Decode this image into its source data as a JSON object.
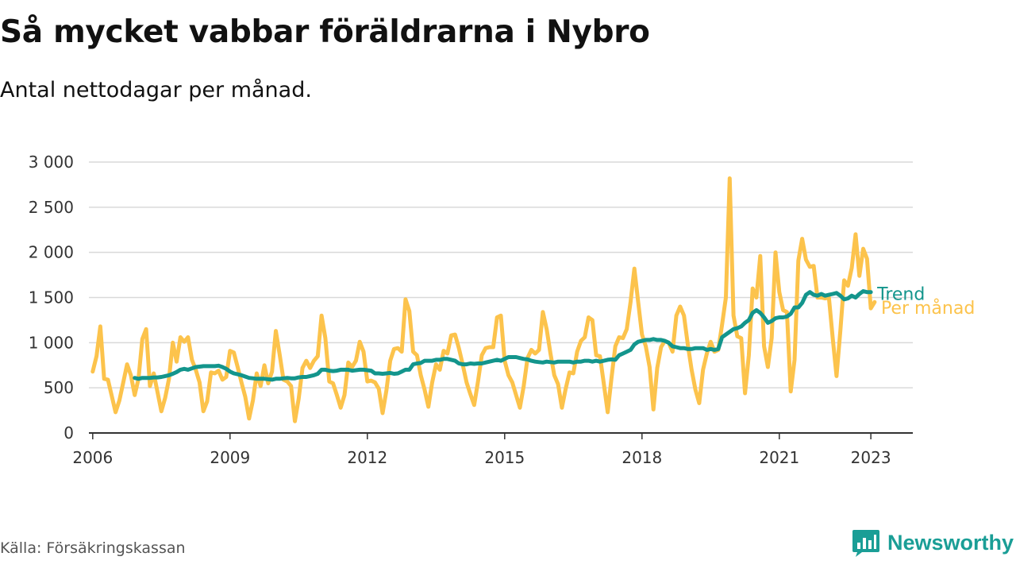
{
  "header": {
    "title": "Så mycket vabbar föräldrarna i Nybro",
    "subtitle": "Antal nettodagar per månad."
  },
  "footer": {
    "source": "Källa: Försäkringskassan",
    "brand": "Newsworthy",
    "brand_icon": "bar-chart-speech-bubble-icon"
  },
  "colors": {
    "monthly": "#fcc34c",
    "trend": "#13958c",
    "grid": "#d9d9d9",
    "axis": "#333333"
  },
  "chart_data": {
    "type": "line",
    "xlim": [
      "2005-12",
      "2023-12"
    ],
    "ylim": [
      0,
      3000
    ],
    "grid": true,
    "y_ticks": [
      {
        "value": 0,
        "label": "0"
      },
      {
        "value": 500,
        "label": "500"
      },
      {
        "value": 1000,
        "label": "1 000"
      },
      {
        "value": 1500,
        "label": "1 500"
      },
      {
        "value": 2000,
        "label": "2 000"
      },
      {
        "value": 2500,
        "label": "2 500"
      },
      {
        "value": 3000,
        "label": "3 000"
      }
    ],
    "x_ticks": [
      {
        "value": "2006-01",
        "label": "2006"
      },
      {
        "value": "2009-01",
        "label": "2009"
      },
      {
        "value": "2012-01",
        "label": "2012"
      },
      {
        "value": "2015-01",
        "label": "2015"
      },
      {
        "value": "2018-01",
        "label": "2018"
      },
      {
        "value": "2021-01",
        "label": "2021"
      },
      {
        "value": "2023-01",
        "label": "2023"
      }
    ],
    "series": [
      {
        "name": "Per månad",
        "start": "2006-01",
        "values": [
          680,
          850,
          1180,
          600,
          590,
          410,
          230,
          360,
          560,
          760,
          640,
          420,
          600,
          1040,
          1150,
          520,
          660,
          450,
          240,
          390,
          600,
          1000,
          790,
          1060,
          1010,
          1060,
          810,
          700,
          560,
          240,
          350,
          670,
          660,
          690,
          590,
          620,
          910,
          890,
          730,
          560,
          400,
          160,
          360,
          660,
          520,
          750,
          550,
          680,
          1130,
          870,
          590,
          570,
          520,
          130,
          380,
          720,
          800,
          720,
          800,
          850,
          1300,
          1050,
          570,
          550,
          420,
          280,
          420,
          780,
          730,
          800,
          1010,
          900,
          570,
          580,
          560,
          490,
          220,
          470,
          800,
          930,
          940,
          900,
          1480,
          1350,
          900,
          860,
          640,
          480,
          290,
          560,
          760,
          700,
          910,
          880,
          1080,
          1090,
          940,
          760,
          560,
          430,
          310,
          570,
          860,
          940,
          950,
          950,
          1280,
          1300,
          800,
          640,
          560,
          420,
          280,
          520,
          830,
          920,
          880,
          920,
          1340,
          1150,
          880,
          640,
          540,
          280,
          490,
          670,
          660,
          900,
          1020,
          1060,
          1280,
          1250,
          860,
          850,
          540,
          230,
          610,
          960,
          1060,
          1050,
          1150,
          1450,
          1820,
          1450,
          1090,
          960,
          730,
          260,
          720,
          950,
          1020,
          1000,
          900,
          1300,
          1400,
          1300,
          980,
          700,
          480,
          330,
          700,
          880,
          1010,
          900,
          920,
          1200,
          1500,
          2820,
          1300,
          1070,
          1050,
          440,
          860,
          1600,
          1500,
          1960,
          960,
          730,
          1050,
          2000,
          1560,
          1360,
          1340,
          460,
          810,
          1910,
          2150,
          1920,
          1840,
          1850,
          1500,
          1500,
          1490,
          1500,
          1050,
          630,
          1130,
          1690,
          1630,
          1830,
          2200,
          1740,
          2040,
          1930,
          1380,
          1450
        ]
      },
      {
        "name": "Trend",
        "start": "2006-12",
        "values": [
          610,
          600,
          610,
          610,
          610,
          615,
          615,
          620,
          630,
          640,
          655,
          675,
          700,
          710,
          700,
          715,
          730,
          735,
          740,
          740,
          740,
          740,
          745,
          730,
          710,
          680,
          660,
          650,
          640,
          625,
          610,
          605,
          600,
          600,
          600,
          595,
          590,
          600,
          600,
          605,
          610,
          605,
          605,
          615,
          620,
          620,
          630,
          640,
          655,
          700,
          700,
          690,
          685,
          690,
          700,
          700,
          700,
          690,
          695,
          700,
          700,
          695,
          690,
          660,
          660,
          655,
          660,
          665,
          655,
          660,
          680,
          700,
          700,
          760,
          770,
          775,
          800,
          800,
          800,
          810,
          810,
          820,
          820,
          810,
          800,
          770,
          760,
          760,
          770,
          765,
          770,
          770,
          780,
          790,
          800,
          810,
          800,
          820,
          840,
          840,
          840,
          830,
          820,
          815,
          800,
          790,
          785,
          780,
          790,
          785,
          780,
          790,
          790,
          790,
          790,
          780,
          790,
          790,
          800,
          800,
          790,
          800,
          790,
          800,
          810,
          815,
          810,
          860,
          880,
          900,
          920,
          980,
          1010,
          1020,
          1030,
          1030,
          1040,
          1030,
          1030,
          1020,
          1000,
          960,
          950,
          940,
          940,
          930,
          930,
          940,
          940,
          940,
          920,
          930,
          920,
          930,
          1060,
          1090,
          1120,
          1150,
          1160,
          1180,
          1220,
          1250,
          1330,
          1360,
          1330,
          1280,
          1220,
          1240,
          1270,
          1280,
          1280,
          1290,
          1320,
          1390,
          1390,
          1440,
          1530,
          1560,
          1530,
          1520,
          1540,
          1520,
          1530,
          1540,
          1550,
          1520,
          1480,
          1490,
          1520,
          1500,
          1540,
          1570,
          1560,
          1560
        ]
      }
    ]
  }
}
